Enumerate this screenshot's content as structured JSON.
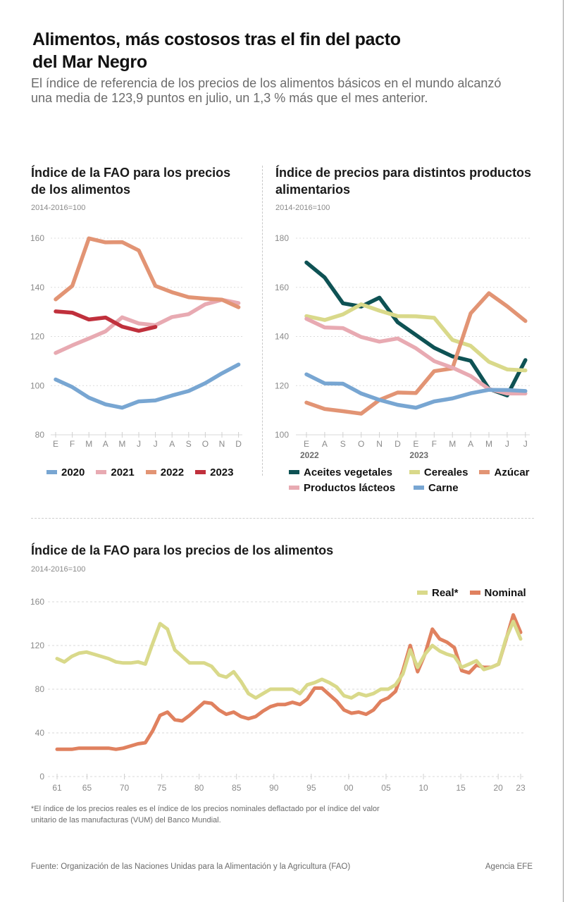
{
  "header": {
    "title": "Alimentos, más costosos tras el fin del pacto del Mar Negro",
    "subtitle": "El índice de referencia de los precios de los alimentos básicos en el mundo alcanzó una media de 123,9 puntos en julio, un 1,3 % más que el mes anterior."
  },
  "footer": {
    "footnote": "*El índice de los precios reales es el índice de los precios nominales deflactado por el índice del valor unitario de las manufacturas (VUM) del Banco Mundial.",
    "source": "Fuente: Organización de las Naciones Unidas para la Alimentación y la Agricultura (FAO)",
    "agency": "Agencia EFE"
  },
  "chart_data": [
    {
      "type": "line",
      "title": "Índice de la FAO para los precios de los alimentos",
      "unit": "2014-2016=100",
      "xlabel": "",
      "ylabel": "",
      "categories": [
        "E",
        "F",
        "M",
        "A",
        "M",
        "J",
        "J",
        "A",
        "S",
        "O",
        "N",
        "D"
      ],
      "yticks": [
        80,
        100,
        120,
        140,
        160
      ],
      "ylim": [
        80,
        160
      ],
      "grid": true,
      "legend": "bottom",
      "series": [
        {
          "name": "2020",
          "color": "#78a6d2",
          "values": [
            102.5,
            99.4,
            95.1,
            92.4,
            91.0,
            93.6,
            94.0,
            96.0,
            97.8,
            101.0,
            105.0,
            108.6
          ]
        },
        {
          "name": "2021",
          "color": "#e8aab2",
          "values": [
            113.3,
            116.4,
            119.2,
            122.1,
            127.8,
            125.3,
            124.6,
            127.9,
            129.1,
            133.1,
            134.9,
            133.6
          ]
        },
        {
          "name": "2022",
          "color": "#e29474",
          "values": [
            135.1,
            140.6,
            159.9,
            158.3,
            158.4,
            155.0,
            140.6,
            138.0,
            136.0,
            135.4,
            135.0,
            131.9
          ]
        },
        {
          "name": "2023",
          "color": "#c0303c",
          "values": [
            130.2,
            129.7,
            126.9,
            127.7,
            124.0,
            122.3,
            123.9
          ]
        }
      ]
    },
    {
      "type": "line",
      "title": "Índice de precios para distintos productos alimentarios",
      "unit": "2014-2016=100",
      "xlabel": "",
      "ylabel": "",
      "categories": [
        "E",
        "A",
        "S",
        "O",
        "N",
        "D",
        "E",
        "F",
        "M",
        "A",
        "M",
        "J",
        "J"
      ],
      "year_labels": [
        {
          "label": "2022",
          "index": 0
        },
        {
          "label": "2023",
          "index": 6
        }
      ],
      "yticks": [
        100,
        120,
        140,
        160,
        180
      ],
      "ylim": [
        100,
        180
      ],
      "grid": true,
      "legend": "bottom",
      "series": [
        {
          "name": "Aceites vegetales",
          "color": "#0e5254",
          "values": [
            170.1,
            164.0,
            153.5,
            152.2,
            155.8,
            145.8,
            140.6,
            135.4,
            131.9,
            130.1,
            118.7,
            116.0,
            130.4
          ]
        },
        {
          "name": "Cereales",
          "color": "#d9d98a",
          "values": [
            148.3,
            146.7,
            149.0,
            153.1,
            150.5,
            148.3,
            148.2,
            147.6,
            138.6,
            136.2,
            129.7,
            126.6,
            126.2
          ]
        },
        {
          "name": "Azúcar",
          "color": "#e29474",
          "values": [
            113.1,
            110.5,
            109.6,
            108.6,
            114.2,
            117.2,
            117.0,
            125.9,
            127.0,
            149.4,
            157.6,
            152.3,
            146.3
          ]
        },
        {
          "name": "Productos lácteos",
          "color": "#e8aab2",
          "values": [
            147.2,
            143.7,
            143.4,
            139.8,
            137.9,
            139.2,
            135.2,
            130.0,
            127.3,
            123.9,
            118.6,
            116.8,
            116.8
          ]
        },
        {
          "name": "Carne",
          "color": "#78a6d2",
          "values": [
            124.6,
            120.9,
            120.8,
            116.8,
            114.2,
            112.2,
            111.0,
            113.6,
            114.8,
            116.9,
            118.3,
            118.2,
            117.8
          ]
        }
      ]
    },
    {
      "type": "line",
      "title": "Índice de la FAO para los precios de los alimentos",
      "unit": "2014-2016=100",
      "xlabel": "",
      "ylabel": "",
      "x_start": 1961,
      "x_end": 2023,
      "xtick_labels": [
        {
          "year": 1961,
          "label": "61"
        },
        {
          "year": 1965,
          "label": "65"
        },
        {
          "year": 1970,
          "label": "70"
        },
        {
          "year": 1975,
          "label": "75"
        },
        {
          "year": 1980,
          "label": "80"
        },
        {
          "year": 1985,
          "label": "85"
        },
        {
          "year": 1990,
          "label": "90"
        },
        {
          "year": 1995,
          "label": "95"
        },
        {
          "year": 2000,
          "label": "00"
        },
        {
          "year": 2005,
          "label": "05"
        },
        {
          "year": 2010,
          "label": "10"
        },
        {
          "year": 2015,
          "label": "15"
        },
        {
          "year": 2020,
          "label": "20"
        },
        {
          "year": 2023,
          "label": "23"
        }
      ],
      "yticks": [
        0,
        40,
        80,
        120,
        160
      ],
      "ylim": [
        0,
        160
      ],
      "grid": true,
      "legend": "top-right",
      "series": [
        {
          "name": "Real*",
          "color": "#d9d98a",
          "values": [
            108,
            105,
            110,
            113,
            114,
            112,
            110,
            108,
            105,
            104,
            104,
            105,
            103,
            122,
            140,
            135,
            116,
            110,
            104,
            104,
            104,
            101,
            93,
            91,
            96,
            87,
            76,
            72,
            76,
            80,
            80,
            80,
            80,
            76,
            84,
            86,
            89,
            86,
            82,
            74,
            72,
            76,
            74,
            76,
            80,
            80,
            84,
            94,
            116,
            100,
            112,
            120,
            115,
            112,
            110,
            100,
            103,
            106,
            98,
            100,
            103,
            126,
            142,
            126
          ]
        },
        {
          "name": "Nominal",
          "color": "#e0815f",
          "values": [
            25,
            25,
            25,
            26,
            26,
            26,
            26,
            26,
            25,
            26,
            28,
            30,
            31,
            42,
            56,
            59,
            52,
            51,
            56,
            62,
            68,
            67,
            61,
            57,
            59,
            55,
            53,
            55,
            60,
            64,
            66,
            66,
            68,
            66,
            71,
            81,
            81,
            75,
            69,
            61,
            58,
            59,
            57,
            61,
            69,
            72,
            78,
            97,
            120,
            96,
            112,
            135,
            126,
            123,
            118,
            97,
            95,
            102,
            100,
            100,
            103,
            125,
            148,
            132
          ]
        }
      ]
    }
  ]
}
